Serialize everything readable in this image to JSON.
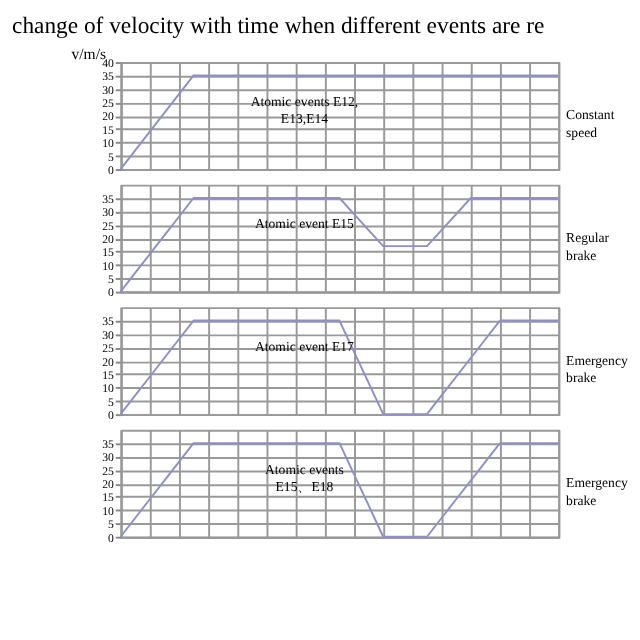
{
  "chart_data": [
    {
      "type": "line",
      "title": "change of velocity with time when different events are re",
      "ylabel": "v/m/s",
      "categories": [
        null,
        null,
        null,
        null,
        null,
        null,
        null,
        null,
        null,
        null,
        null,
        null,
        null,
        null,
        null,
        null,
        null,
        null,
        null,
        null,
        null,
        null,
        null,
        null,
        null,
        null,
        null,
        null,
        null,
        null,
        null
      ],
      "series": [
        {
          "color": "#8f8fc8",
          "values": [
            0,
            7,
            14,
            21,
            28,
            35,
            35,
            35,
            35,
            35,
            35,
            35,
            35,
            35,
            35,
            35,
            35,
            35,
            35,
            35,
            35,
            35,
            35,
            35,
            35,
            35,
            35,
            35,
            35,
            35,
            35
          ]
        }
      ],
      "ylim": [
        0,
        40
      ],
      "yticks": [
        0,
        5,
        10,
        15,
        20,
        25,
        30,
        35,
        40
      ],
      "grid": true,
      "annotations": [
        "Atomic events E12,\nE13,E14",
        "Constant\nspeed"
      ]
    },
    {
      "type": "line",
      "categories": [
        null,
        null,
        null,
        null,
        null,
        null,
        null,
        null,
        null,
        null,
        null,
        null,
        null,
        null,
        null,
        null,
        null,
        null,
        null,
        null,
        null,
        null,
        null,
        null,
        null,
        null,
        null,
        null,
        null,
        null,
        null
      ],
      "series": [
        {
          "color": "#8f8fc8",
          "values": [
            0,
            7,
            14,
            21,
            28,
            35,
            35,
            35,
            35,
            35,
            35,
            35,
            35,
            35,
            35,
            35,
            29,
            23,
            17,
            17,
            17,
            17,
            23,
            29,
            35,
            35,
            35,
            35,
            35,
            35,
            35
          ]
        }
      ],
      "ylim": [
        0,
        40
      ],
      "yticks": [
        0,
        5,
        10,
        15,
        20,
        25,
        30,
        35
      ],
      "grid": true,
      "annotations": [
        "Atomic event E15",
        "Regular\nbrake"
      ]
    },
    {
      "type": "line",
      "categories": [
        null,
        null,
        null,
        null,
        null,
        null,
        null,
        null,
        null,
        null,
        null,
        null,
        null,
        null,
        null,
        null,
        null,
        null,
        null,
        null,
        null,
        null,
        null,
        null,
        null,
        null,
        null,
        null,
        null,
        null,
        null
      ],
      "series": [
        {
          "color": "#8f8fc8",
          "values": [
            0,
            7,
            14,
            21,
            28,
            35,
            35,
            35,
            35,
            35,
            35,
            35,
            35,
            35,
            35,
            35,
            23.3,
            11.7,
            0,
            0,
            0,
            0,
            7,
            14,
            21,
            28,
            35,
            35,
            35,
            35,
            35
          ]
        }
      ],
      "ylim": [
        0,
        40
      ],
      "yticks": [
        0,
        5,
        10,
        15,
        20,
        25,
        30,
        35
      ],
      "grid": true,
      "annotations": [
        "Atomic event E17",
        "Emergency\nbrake"
      ]
    },
    {
      "type": "line",
      "categories": [
        null,
        null,
        null,
        null,
        null,
        null,
        null,
        null,
        null,
        null,
        null,
        null,
        null,
        null,
        null,
        null,
        null,
        null,
        null,
        null,
        null,
        null,
        null,
        null,
        null,
        null,
        null,
        null,
        null,
        null,
        null
      ],
      "series": [
        {
          "color": "#8f8fc8",
          "values": [
            0,
            7,
            14,
            21,
            28,
            35,
            35,
            35,
            35,
            35,
            35,
            35,
            35,
            35,
            35,
            35,
            23.3,
            11.7,
            0,
            0,
            0,
            0,
            7,
            14,
            21,
            28,
            35,
            35,
            35,
            35,
            35
          ]
        }
      ],
      "ylim": [
        0,
        40
      ],
      "yticks": [
        0,
        5,
        10,
        15,
        20,
        25,
        30,
        35
      ],
      "grid": true,
      "annotations": [
        "Atomic events\nE15、E18",
        "Emergency\nbrake"
      ]
    }
  ]
}
